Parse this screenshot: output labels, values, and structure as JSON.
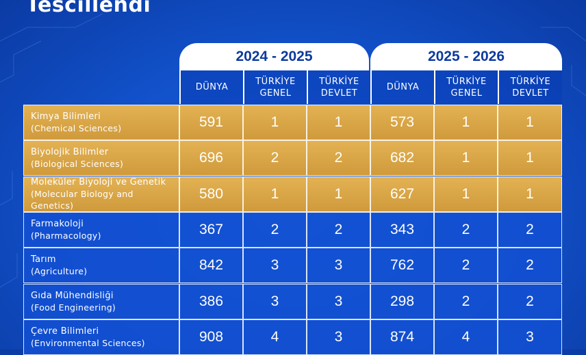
{
  "title": "Tescillendi",
  "years": [
    "2024 - 2025",
    "2025 - 2026"
  ],
  "columns": [
    "DÜNYA",
    "TÜRKİYE\nGENEL",
    "TÜRKİYE\nDEVLET",
    "DÜNYA",
    "TÜRKİYE\nGENEL",
    "TÜRKİYE\nDEVLET"
  ],
  "rows": [
    {
      "name": "Kimya Bilimleri",
      "sub": "(Chemical Sciences)",
      "highlight": true,
      "values": [
        "591",
        "1",
        "1",
        "573",
        "1",
        "1"
      ]
    },
    {
      "name": "Biyolojik Bilimler",
      "sub": "(Biological Sciences)",
      "highlight": true,
      "values": [
        "696",
        "2",
        "2",
        "682",
        "1",
        "1"
      ]
    },
    {
      "name": "Moleküler Biyoloji ve Genetik",
      "sub": "(Molecular Biology and Genetics)",
      "highlight": true,
      "values": [
        "580",
        "1",
        "1",
        "627",
        "1",
        "1"
      ]
    },
    {
      "name": "Farmakoloji",
      "sub": "(Pharmacology)",
      "highlight": false,
      "values": [
        "367",
        "2",
        "2",
        "343",
        "2",
        "2"
      ]
    },
    {
      "name": "Tarım",
      "sub": "(Agriculture)",
      "highlight": false,
      "values": [
        "842",
        "3",
        "3",
        "762",
        "2",
        "2"
      ]
    },
    {
      "name": "Gıda Mühendisliği",
      "sub": "(Food Engineering)",
      "highlight": false,
      "values": [
        "386",
        "3",
        "3",
        "298",
        "2",
        "2"
      ]
    },
    {
      "name": "Çevre Bilimleri",
      "sub": "(Environmental Sciences)",
      "highlight": false,
      "values": [
        "908",
        "4",
        "3",
        "874",
        "4",
        "3"
      ]
    }
  ],
  "colors": {
    "gold": "#d9a547",
    "blue": "#1250d2",
    "header_text": "#0c3a9e"
  }
}
